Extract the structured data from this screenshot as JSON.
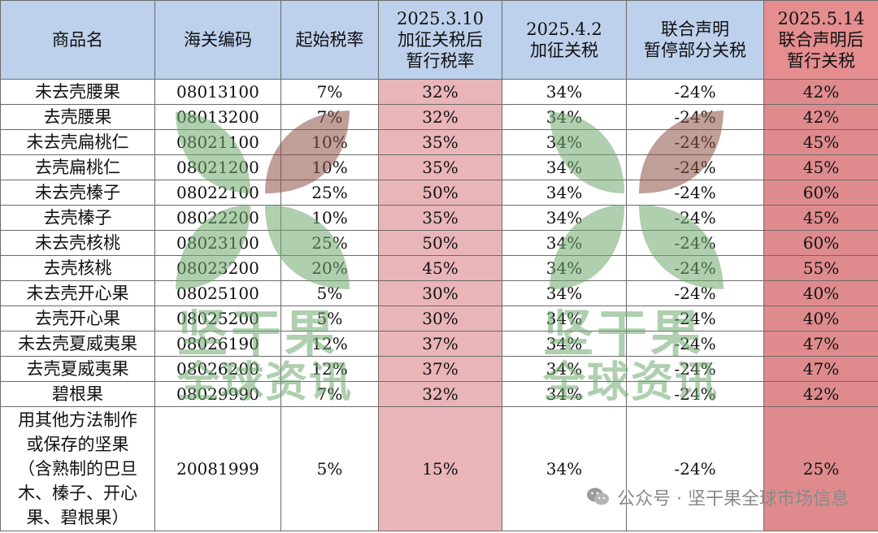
{
  "headers": {
    "name": "商品名",
    "code": "海关编码",
    "base": "起始税率",
    "rate310": [
      "2025.3.10",
      "加征关税后",
      "暂行税率"
    ],
    "rate42": [
      "2025.4.2",
      "加征关税"
    ],
    "joint": [
      "联合声明",
      "暂停部分关税"
    ],
    "rate514": [
      "2025.5.14",
      "联合声明后",
      "暂行关税"
    ]
  },
  "rows": [
    {
      "name": "未去壳腰果",
      "code": "08013100",
      "base": "7%",
      "r310": "32%",
      "r42": "34%",
      "joint": "-24%",
      "r514": "42%"
    },
    {
      "name": "去壳腰果",
      "code": "08013200",
      "base": "7%",
      "r310": "32%",
      "r42": "34%",
      "joint": "-24%",
      "r514": "42%"
    },
    {
      "name": "未去壳扁桃仁",
      "code": "08021100",
      "base": "10%",
      "r310": "35%",
      "r42": "34%",
      "joint": "-24%",
      "r514": "45%"
    },
    {
      "name": "去壳扁桃仁",
      "code": "08021200",
      "base": "10%",
      "r310": "35%",
      "r42": "34%",
      "joint": "-24%",
      "r514": "45%"
    },
    {
      "name": "未去壳榛子",
      "code": "08022100",
      "base": "25%",
      "r310": "50%",
      "r42": "34%",
      "joint": "-24%",
      "r514": "60%"
    },
    {
      "name": "去壳榛子",
      "code": "08022200",
      "base": "10%",
      "r310": "35%",
      "r42": "34%",
      "joint": "-24%",
      "r514": "45%"
    },
    {
      "name": "未去壳核桃",
      "code": "08023100",
      "base": "25%",
      "r310": "50%",
      "r42": "34%",
      "joint": "-24%",
      "r514": "60%"
    },
    {
      "name": "去壳核桃",
      "code": "08023200",
      "base": "20%",
      "r310": "45%",
      "r42": "34%",
      "joint": "-24%",
      "r514": "55%"
    },
    {
      "name": "未去壳开心果",
      "code": "08025100",
      "base": "5%",
      "r310": "30%",
      "r42": "34%",
      "joint": "-24%",
      "r514": "40%"
    },
    {
      "name": "去壳开心果",
      "code": "08025200",
      "base": "5%",
      "r310": "30%",
      "r42": "34%",
      "joint": "-24%",
      "r514": "40%"
    },
    {
      "name": "未去壳夏威夷果",
      "code": "08026190",
      "base": "12%",
      "r310": "37%",
      "r42": "34%",
      "joint": "-24%",
      "r514": "47%"
    },
    {
      "name": "去壳夏威夷果",
      "code": "08026200",
      "base": "12%",
      "r310": "37%",
      "r42": "34%",
      "joint": "-24%",
      "r514": "47%"
    },
    {
      "name": "碧根果",
      "code": "08029990",
      "base": "7%",
      "r310": "32%",
      "r42": "34%",
      "joint": "-24%",
      "r514": "42%"
    }
  ],
  "tall_row": {
    "name_lines": [
      "用其他方法制作",
      "或保存的坚果",
      "（含熟制的巴旦",
      "木、榛子、开心",
      "果、碧根果）"
    ],
    "code": "20081999",
    "base": "5%",
    "r310": "15%",
    "r42": "34%",
    "joint": "-24%",
    "r514": "25%"
  },
  "watermark": {
    "line1": "坚干果",
    "line2": "全球资讯"
  },
  "footer": {
    "text": "公众号 · 坚干果全球市场信息"
  }
}
